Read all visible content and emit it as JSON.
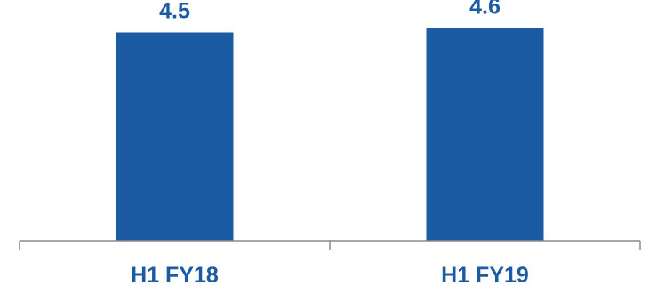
{
  "chart_data": {
    "type": "bar",
    "categories": [
      "H1 FY18",
      "H1 FY19"
    ],
    "values": [
      4.5,
      4.6
    ],
    "data_labels": [
      "4.5",
      "4.6"
    ],
    "title": "",
    "xlabel": "",
    "ylabel": "",
    "ylim": [
      0,
      5.2
    ],
    "grid": false,
    "legend": "none",
    "bar_color": "#1B5BA3",
    "label_color": "#1B5BA3",
    "axis_color": "#8C8C8C"
  }
}
